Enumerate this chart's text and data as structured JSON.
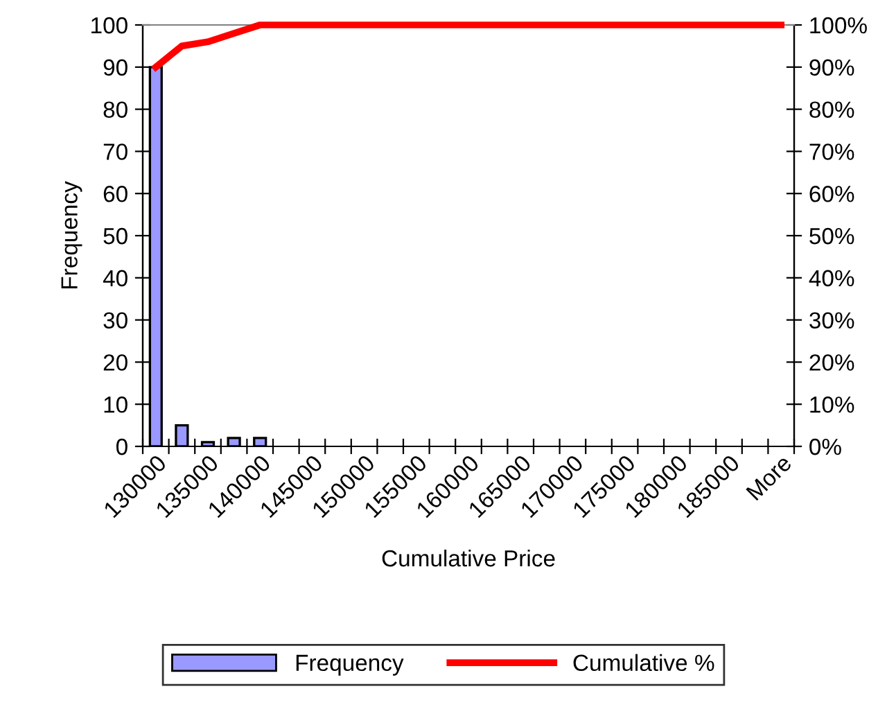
{
  "chart_data": {
    "type": "bar",
    "xlabel": "Cumulative Price",
    "ylabel": "Frequency",
    "categories": [
      "130000",
      null,
      "135000",
      null,
      "140000",
      null,
      "145000",
      null,
      "150000",
      null,
      "155000",
      null,
      "160000",
      null,
      "165000",
      null,
      "170000",
      null,
      "175000",
      null,
      "180000",
      null,
      "185000",
      null,
      "More"
    ],
    "series": [
      {
        "name": "Frequency",
        "color": "#9999ff",
        "values": [
          90,
          5,
          1,
          2,
          2,
          0,
          0,
          0,
          0,
          0,
          0,
          0,
          0,
          0,
          0,
          0,
          0,
          0,
          0,
          0,
          0,
          0,
          0,
          0,
          0
        ]
      },
      {
        "name": "Cumulative %",
        "type": "line",
        "axis": "y2",
        "color": "#ff0000",
        "values": [
          90,
          95,
          96,
          98,
          100,
          100,
          100,
          100,
          100,
          100,
          100,
          100,
          100,
          100,
          100,
          100,
          100,
          100,
          100,
          100,
          100,
          100,
          100,
          100,
          100
        ]
      }
    ],
    "ylim": [
      0,
      100
    ],
    "yticks": [
      0,
      10,
      20,
      30,
      40,
      50,
      60,
      70,
      80,
      90,
      100
    ],
    "y2lim": [
      0,
      100
    ],
    "y2ticks": [
      {
        "value": 0,
        "label": "0%"
      },
      {
        "value": 10,
        "label": "10%"
      },
      {
        "value": 20,
        "label": "20%"
      },
      {
        "value": 30,
        "label": "30%"
      },
      {
        "value": 40,
        "label": "40%"
      },
      {
        "value": 50,
        "label": "50%"
      },
      {
        "value": 60,
        "label": "60%"
      },
      {
        "value": 70,
        "label": "70%"
      },
      {
        "value": 80,
        "label": "80%"
      },
      {
        "value": 90,
        "label": "90%"
      },
      {
        "value": 100,
        "label": "100%"
      }
    ],
    "grid": false,
    "legend": "bottom",
    "marker": "none",
    "line_style": "solid"
  }
}
